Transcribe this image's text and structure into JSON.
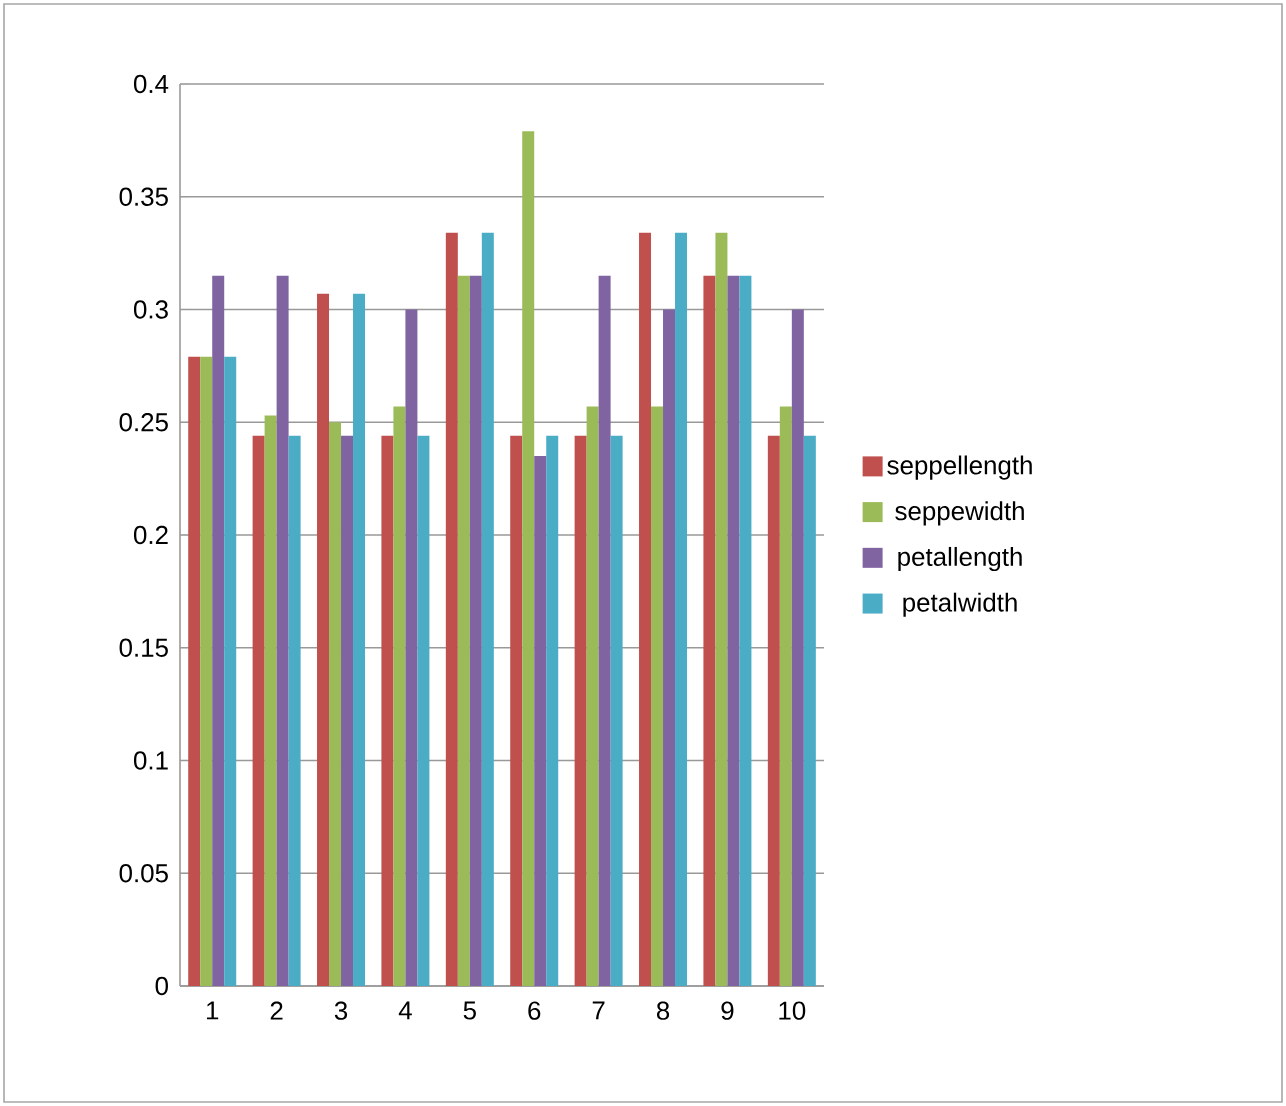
{
  "chart_data": {
    "type": "bar",
    "categories": [
      "1",
      "2",
      "3",
      "4",
      "5",
      "6",
      "7",
      "8",
      "9",
      "10"
    ],
    "series": [
      {
        "name": "seppellength",
        "color": "#c0504d",
        "values": [
          0.279,
          0.244,
          0.307,
          0.244,
          0.334,
          0.244,
          0.244,
          0.334,
          0.315,
          0.244
        ]
      },
      {
        "name": "seppewidth",
        "color": "#9bbb59",
        "values": [
          0.279,
          0.253,
          0.25,
          0.257,
          0.315,
          0.379,
          0.257,
          0.257,
          0.334,
          0.257
        ]
      },
      {
        "name": "petallength",
        "color": "#8064a2",
        "values": [
          0.315,
          0.315,
          0.244,
          0.3,
          0.315,
          0.235,
          0.315,
          0.3,
          0.315,
          0.3
        ]
      },
      {
        "name": "petalwidth",
        "color": "#4bacc6",
        "values": [
          0.279,
          0.244,
          0.307,
          0.244,
          0.334,
          0.244,
          0.244,
          0.334,
          0.315,
          0.244
        ]
      }
    ],
    "ylim": [
      0,
      0.4
    ],
    "yticks": [
      0,
      0.05,
      0.1,
      0.15,
      0.2,
      0.25,
      0.3,
      0.35,
      0.4
    ],
    "grid": "y",
    "legend": "right"
  }
}
